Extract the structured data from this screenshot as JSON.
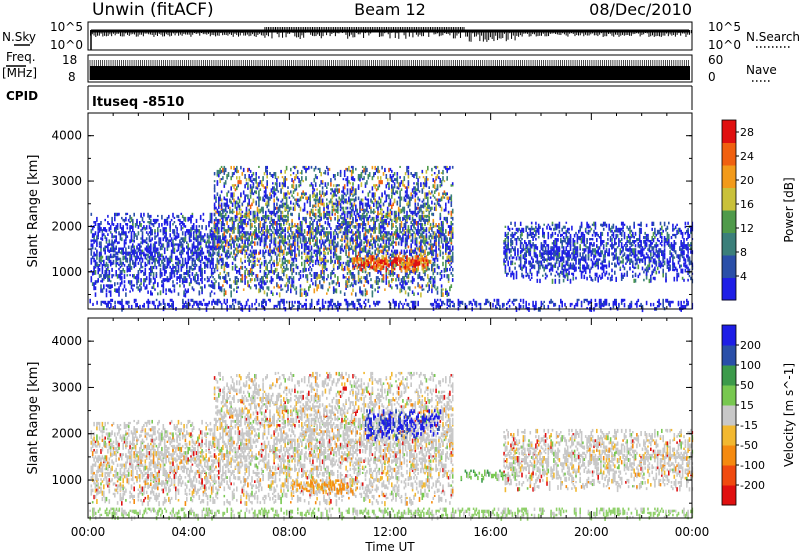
{
  "header": {
    "station": "Unwin (fitACF)",
    "beam": "Beam 12",
    "date": "08/Dec/2010"
  },
  "strip_labels": {
    "nsky": "N.Sky",
    "nsky_top": "10^5",
    "nsky_bottom": "10^0",
    "nsearch": "N.Search",
    "nsearch_top": "10^5",
    "nsearch_bottom": "10^0",
    "freq": "Freq.",
    "freq_unit": "[MHz]",
    "freq_top": "18",
    "freq_bottom": "8",
    "nave": "Nave",
    "nave_top": "60",
    "nave_bottom": "0",
    "cpid": "CPID",
    "cpid_value": "Ituseq -8510"
  },
  "colors": {
    "power_scale": [
      "#1e1ee6",
      "#2a4fa8",
      "#3b7f7a",
      "#4f9a4a",
      "#c9c13a",
      "#f29a1a",
      "#f06010",
      "#e01010"
    ],
    "velocity_scale": [
      "#e01010",
      "#f04a10",
      "#f58a10",
      "#f2b830",
      "#c8c8c8",
      "#78c850",
      "#3c9a4a",
      "#2a4fa8",
      "#1e1ee6"
    ],
    "ground_scatter": "#8fd06a"
  },
  "chart_data": [
    {
      "type": "heatmap",
      "name": "power",
      "xlabel": "",
      "ylabel": "Slant Range [km]",
      "ylim": [
        180,
        4500
      ],
      "xlim_hours": [
        0,
        24
      ],
      "yticks": [
        "1000",
        "2000",
        "3000",
        "4000"
      ],
      "colorbar": {
        "label": "Power [dB]",
        "ticks": [
          "4",
          "8",
          "12",
          "16",
          "20",
          "24",
          "28"
        ],
        "range": [
          0,
          30
        ]
      },
      "regions": [
        {
          "t0": 0.1,
          "t1": 5.0,
          "r0": 500,
          "r1": 2300,
          "level": "low"
        },
        {
          "t0": 5.0,
          "t1": 14.5,
          "r0": 500,
          "r1": 3300,
          "level": "mid"
        },
        {
          "t0": 10.5,
          "t1": 13.5,
          "r0": 1050,
          "r1": 1350,
          "level": "high"
        },
        {
          "t0": 16.5,
          "t1": 24.0,
          "r0": 800,
          "r1": 2100,
          "level": "low"
        },
        {
          "t0": 0.0,
          "t1": 24.0,
          "r0": 180,
          "r1": 400,
          "level": "ground"
        }
      ]
    },
    {
      "type": "heatmap",
      "name": "velocity",
      "xlabel": "Time UT",
      "ylabel": "Slant Range [km]",
      "ylim": [
        180,
        4500
      ],
      "xlim_hours": [
        0,
        24
      ],
      "yticks": [
        "1000",
        "2000",
        "3000",
        "4000"
      ],
      "xticks": [
        "00:00",
        "04:00",
        "08:00",
        "12:00",
        "16:00",
        "20:00",
        "00:00"
      ],
      "colorbar": {
        "label": "Velocity [m s^-1]",
        "ticks": [
          "-200",
          "-100",
          "-50",
          "-15",
          "15",
          "50",
          "100",
          "200"
        ],
        "range": [
          -250,
          250
        ]
      },
      "regions": [
        {
          "t0": 0.1,
          "t1": 5.0,
          "r0": 500,
          "r1": 2300,
          "level": "near-zero"
        },
        {
          "t0": 5.0,
          "t1": 14.5,
          "r0": 500,
          "r1": 3300,
          "level": "near-zero"
        },
        {
          "t0": 8.0,
          "t1": 10.5,
          "r0": 700,
          "r1": 1000,
          "level": "negative"
        },
        {
          "t0": 11.0,
          "t1": 14.0,
          "r0": 1900,
          "r1": 2500,
          "level": "positive"
        },
        {
          "t0": 14.8,
          "t1": 17.0,
          "r0": 1000,
          "r1": 1200,
          "level": "slight-positive"
        },
        {
          "t0": 16.5,
          "t1": 24.0,
          "r0": 800,
          "r1": 2100,
          "level": "near-zero"
        },
        {
          "t0": 0.0,
          "t1": 24.0,
          "r0": 180,
          "r1": 400,
          "level": "ground"
        }
      ]
    }
  ]
}
